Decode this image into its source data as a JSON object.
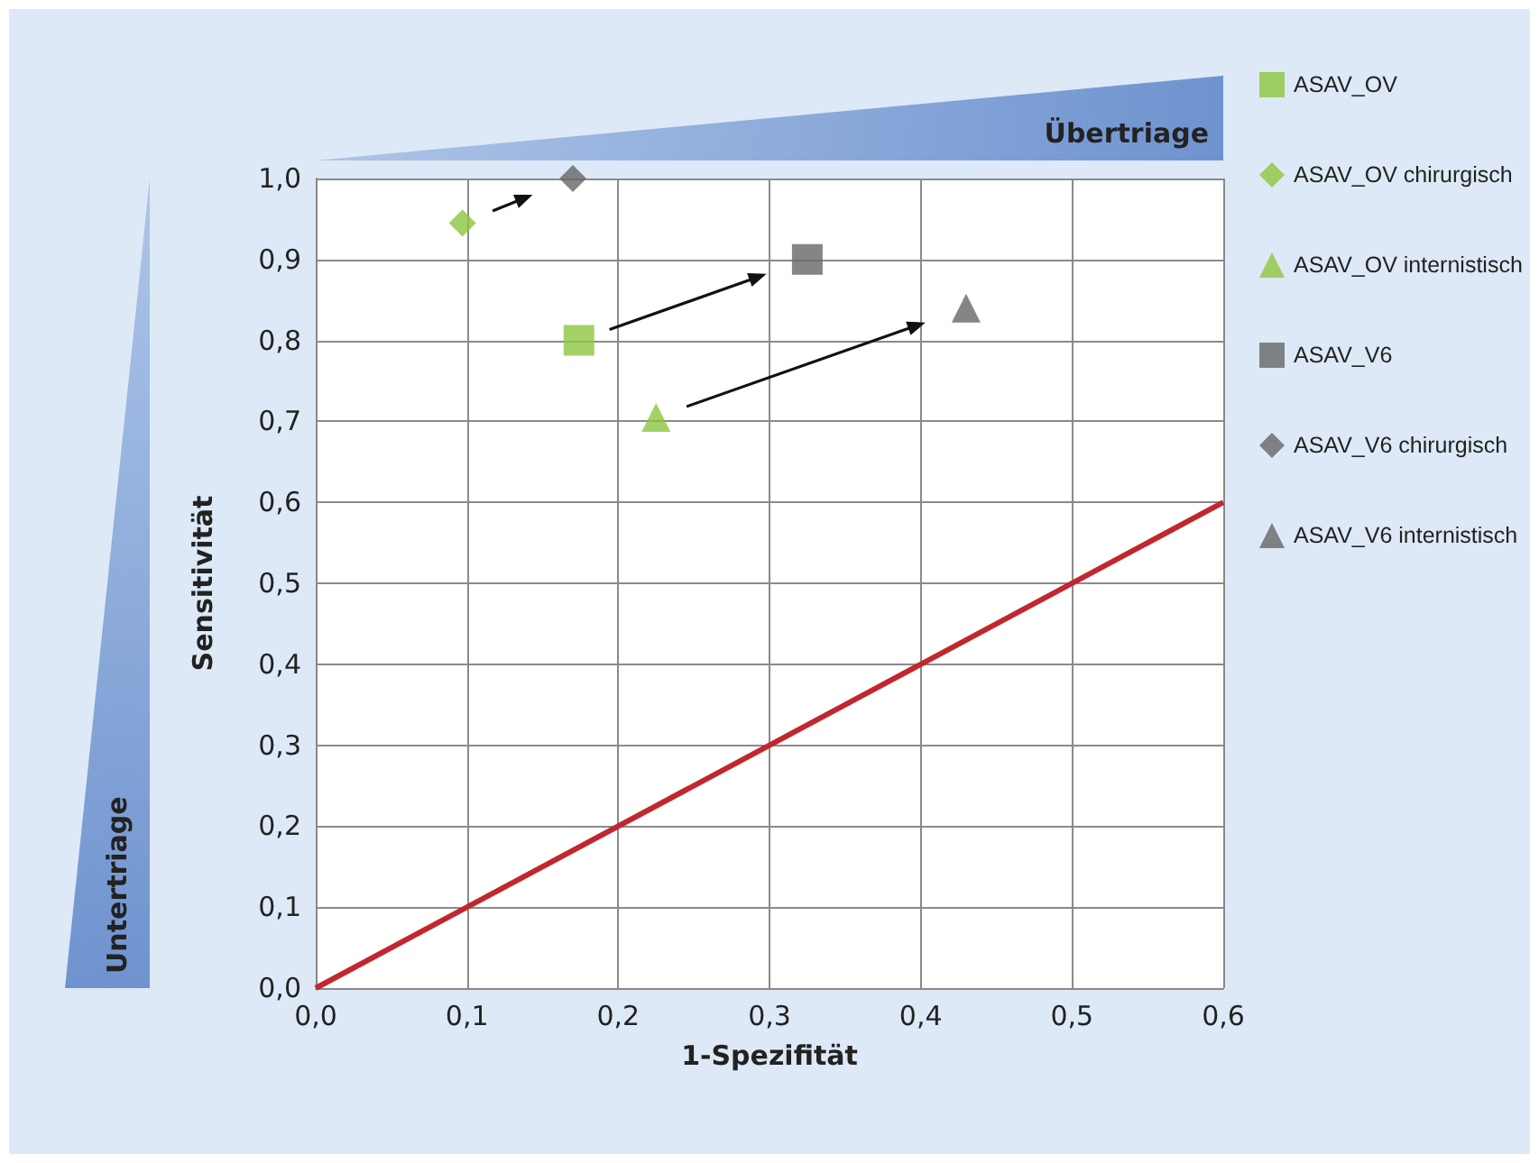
{
  "chart_data": {
    "type": "scatter",
    "xlabel": "1-Spezifität",
    "ylabel": "Sensitivität",
    "annotations": [
      "Übertriage",
      "Untertriage"
    ],
    "xlim": [
      0,
      0.6
    ],
    "ylim": [
      0,
      1
    ],
    "xticks": [
      {
        "value": 0,
        "label": "0,0"
      },
      {
        "value": 0.1,
        "label": "0,1"
      },
      {
        "value": 0.2,
        "label": "0,2"
      },
      {
        "value": 0.3,
        "label": "0,3"
      },
      {
        "value": 0.4,
        "label": "0,4"
      },
      {
        "value": 0.5,
        "label": "0,5"
      },
      {
        "value": 0.6,
        "label": "0,6"
      }
    ],
    "yticks": [
      {
        "value": 0,
        "label": "0,0"
      },
      {
        "value": 0.1,
        "label": "0,1"
      },
      {
        "value": 0.2,
        "label": "0,2"
      },
      {
        "value": 0.3,
        "label": "0,3"
      },
      {
        "value": 0.4,
        "label": "0,4"
      },
      {
        "value": 0.5,
        "label": "0,5"
      },
      {
        "value": 0.6,
        "label": "0,6"
      },
      {
        "value": 0.7,
        "label": "0,7"
      },
      {
        "value": 0.8,
        "label": "0,8"
      },
      {
        "value": 0.9,
        "label": "0,9"
      },
      {
        "value": 1,
        "label": "1,0"
      }
    ],
    "grid": true,
    "legend": "right",
    "series": [
      {
        "name": "ASAV_OV",
        "color": "#8dc63f",
        "marker": "square",
        "x": [
          0.174
        ],
        "values": [
          0.8
        ]
      },
      {
        "name": "ASAV_OV chirurgisch",
        "color": "#8dc63f",
        "marker": "diamond",
        "x": [
          0.097
        ],
        "values": [
          0.945
        ]
      },
      {
        "name": "ASAV_OV internistisch",
        "color": "#8dc63f",
        "marker": "triangle",
        "x": [
          0.225
        ],
        "values": [
          0.705
        ]
      },
      {
        "name": "ASAV_V6",
        "color": "#666666",
        "marker": "square",
        "x": [
          0.325
        ],
        "values": [
          0.9
        ]
      },
      {
        "name": "ASAV_V6 chirurgisch",
        "color": "#666666",
        "marker": "diamond",
        "x": [
          0.17
        ],
        "values": [
          1.0
        ]
      },
      {
        "name": "ASAV_V6 internistisch",
        "color": "#666666",
        "marker": "triangle",
        "x": [
          0.43
        ],
        "values": [
          0.84
        ]
      },
      {
        "type": "line",
        "color": "#c1272d",
        "marker": "none",
        "x": [
          0,
          0.6
        ],
        "values": [
          0,
          0.6
        ]
      }
    ]
  }
}
